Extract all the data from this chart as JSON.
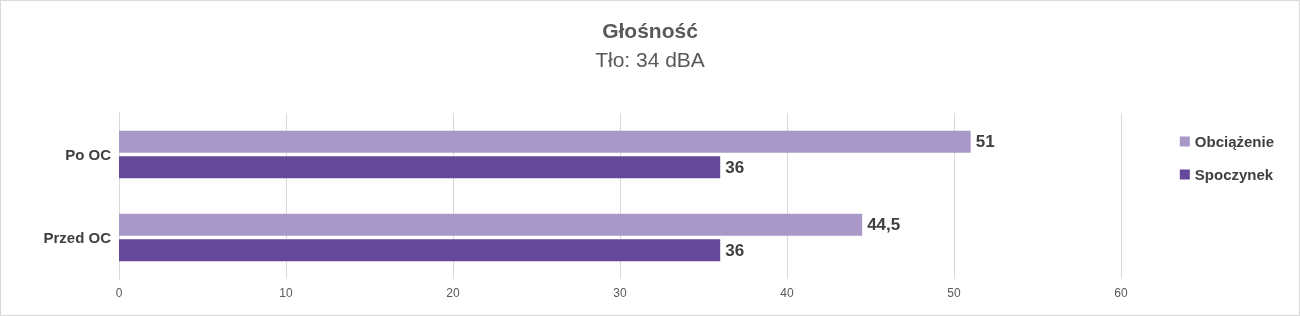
{
  "chart_data": {
    "type": "bar",
    "orientation": "horizontal",
    "title": "Głośność",
    "subtitle": "Tło: 34 dBA",
    "categories": [
      "Po OC",
      "Przed OC"
    ],
    "series": [
      {
        "name": "Obciążenie",
        "color": "#a898c8",
        "values": [
          51,
          44.5
        ],
        "value_labels": [
          "51",
          "44,5"
        ]
      },
      {
        "name": "Spoczynek",
        "color": "#66489a",
        "values": [
          36,
          36
        ],
        "value_labels": [
          "36",
          "36"
        ]
      }
    ],
    "xlim": [
      0,
      60
    ],
    "xticks": [
      0,
      10,
      20,
      30,
      40,
      50,
      60
    ],
    "grid": "x",
    "legend": "right"
  }
}
